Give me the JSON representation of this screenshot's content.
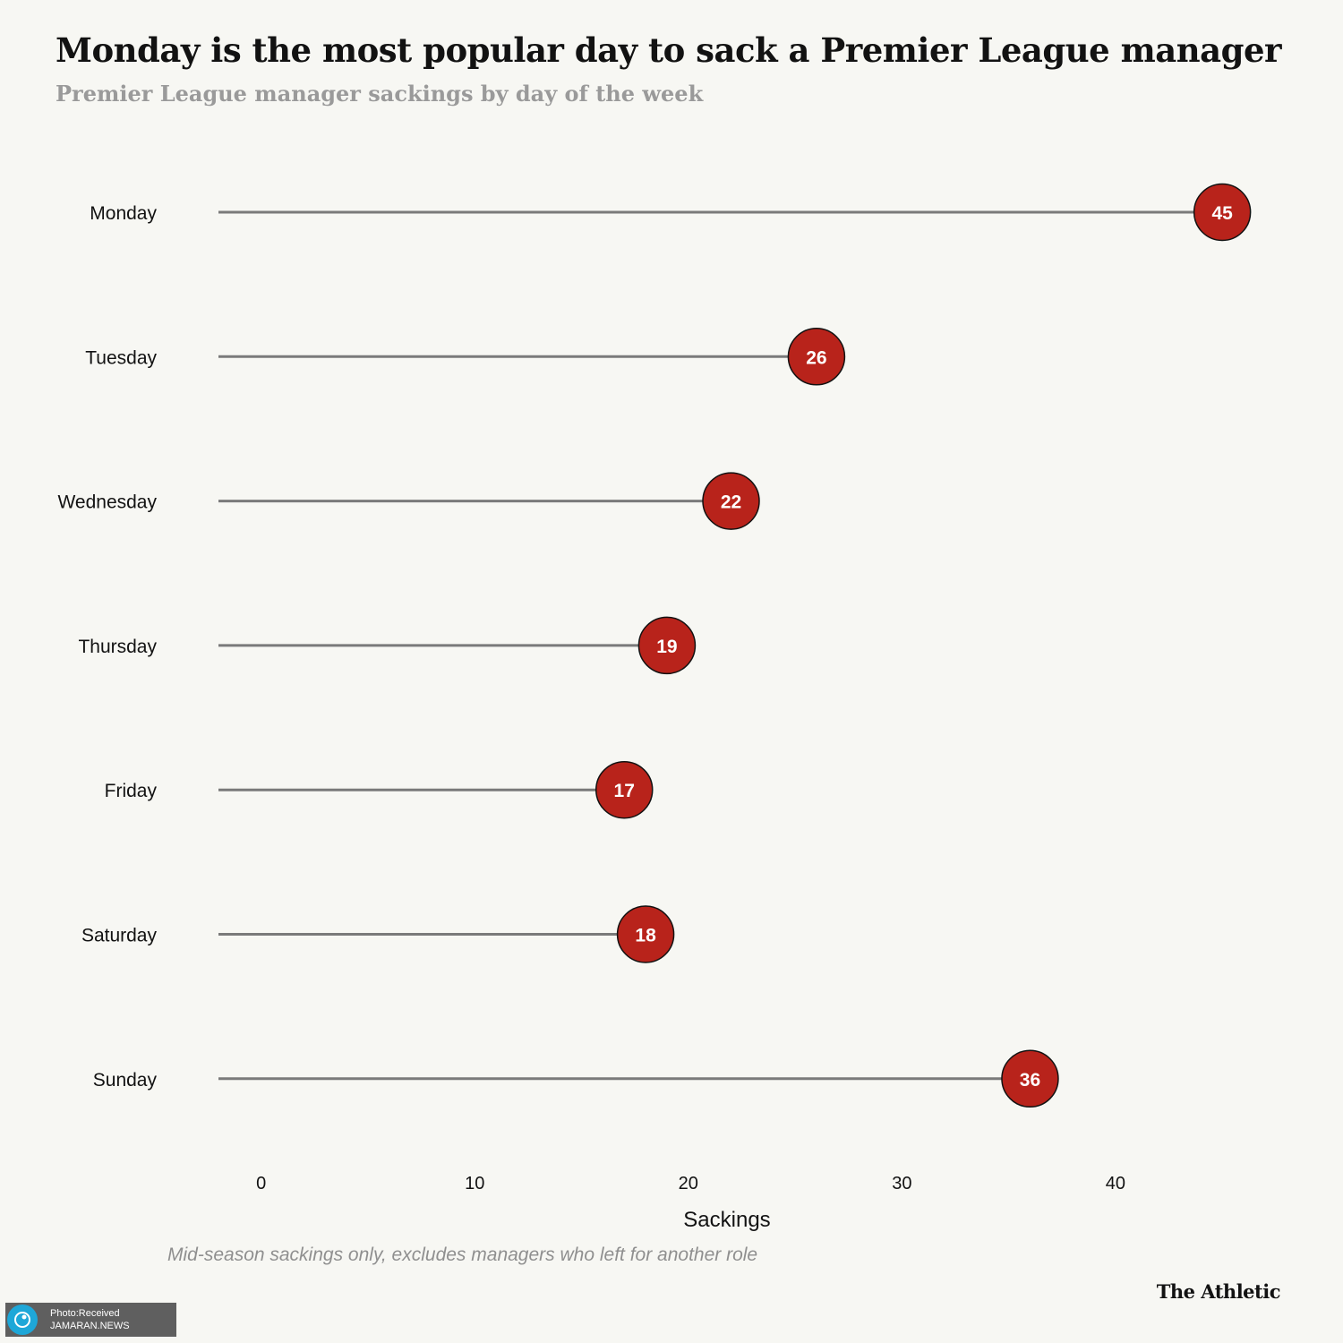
{
  "chart_data": {
    "type": "lollipop",
    "title": "Monday is the most popular day to sack a Premier League manager",
    "subtitle": "Premier League manager sackings by day of the week",
    "categories": [
      "Monday",
      "Tuesday",
      "Wednesday",
      "Thursday",
      "Friday",
      "Saturday",
      "Sunday"
    ],
    "values": [
      45,
      26,
      22,
      19,
      17,
      18,
      36
    ],
    "xlabel": "Sackings",
    "ylabel": "",
    "xticks": [
      0,
      10,
      20,
      30,
      40
    ],
    "xlim": [
      -2,
      46
    ],
    "note": "Mid-season sackings only, excludes managers who left for another role",
    "colors": {
      "dot": "#b8231b",
      "stem": "#7a7a7a",
      "background": "#f7f7f3"
    }
  },
  "footer": {
    "brand": "The Athletic",
    "watermark_line1": "Photo:Received",
    "watermark_line2": "JAMARAN.NEWS"
  }
}
